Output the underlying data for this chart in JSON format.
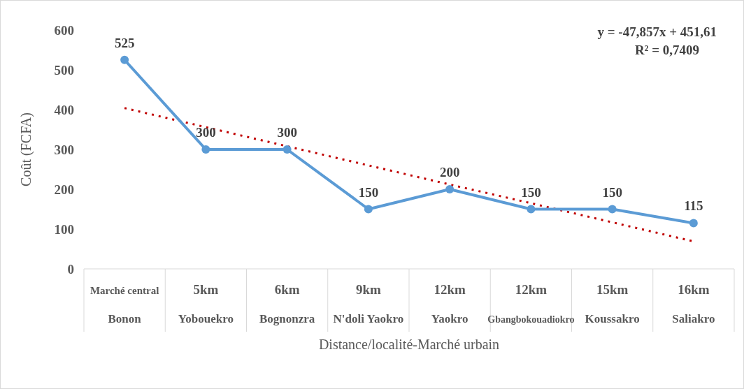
{
  "chart_data": {
    "type": "line",
    "xlabel": "Distance/localité-Marché urbain",
    "ylabel": "Coût (FCFA)",
    "categories": [
      "Marché central\nBonon",
      "5km\nYobouekro",
      "6km\nBognonzra",
      "9km\nN'doli Yaokro",
      "12km\nYaokro",
      "12km\nGbangbokouadiokro",
      "15km\nKoussakro",
      "16km\nSaliakro"
    ],
    "ylim": [
      0,
      600
    ],
    "yticks": [
      0,
      100,
      200,
      300,
      400,
      500,
      600
    ],
    "grid": false,
    "series": [
      {
        "color": "#5b9bd5",
        "marker": "circle",
        "line_style": "solid",
        "values": [
          525,
          300,
          300,
          150,
          200,
          150,
          150,
          115
        ],
        "value_labels": [
          "525",
          "300",
          "300",
          "150",
          "200",
          "150",
          "150",
          "115"
        ]
      },
      {
        "color": "#c00000",
        "marker": "none",
        "line_style": "dotted",
        "values": [
          404,
          356,
          308,
          260,
          212,
          165,
          117,
          69
        ]
      }
    ],
    "annotations": [
      "y = -47,857x + 451,61",
      "R² = 0,7409"
    ]
  }
}
